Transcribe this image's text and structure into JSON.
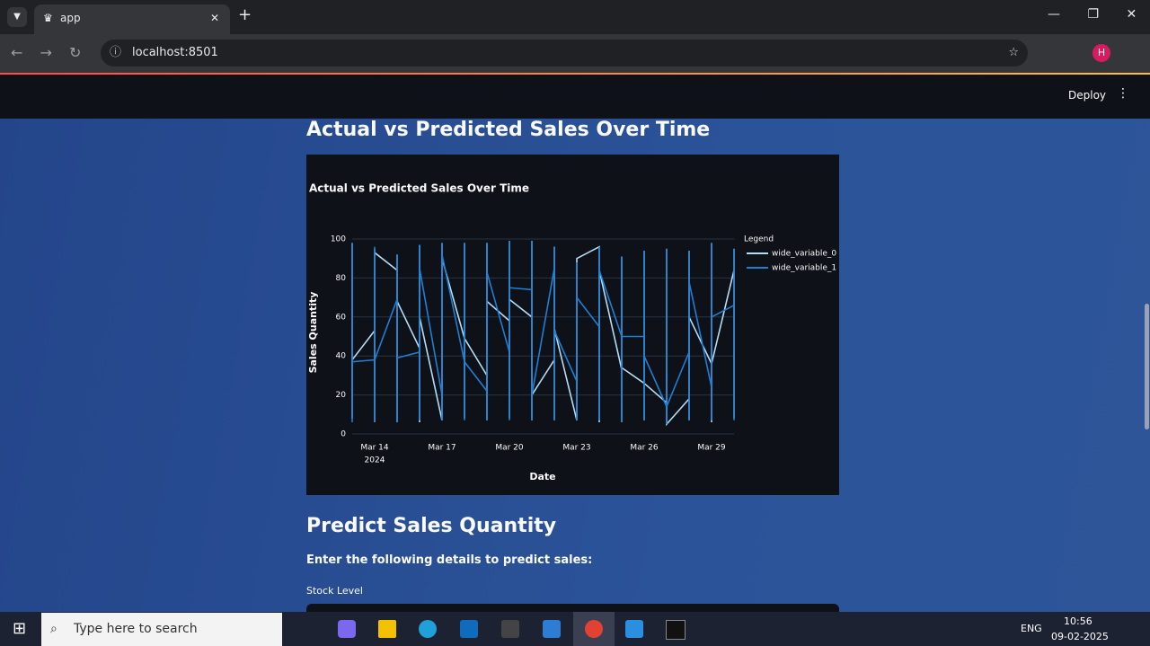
{
  "browser": {
    "tab_title": "app",
    "url": "localhost:8501"
  },
  "app": {
    "deploy": "Deploy",
    "heading": "Actual vs Predicted Sales Over Time",
    "heading2": "Predict Sales Quantity",
    "instruction": "Enter the following details to predict sales:",
    "field_label": "Stock Level"
  },
  "chart_data": {
    "type": "line",
    "title": "Actual vs Predicted Sales Over Time",
    "x_label": "Date",
    "y_label": "Sales Quantity",
    "legend_title": "Legend",
    "legend": "right",
    "grid": true,
    "x": [
      "2024-03-13",
      "2024-03-13",
      "2024-03-13",
      "2024-03-13",
      "2024-03-14",
      "2024-03-14",
      "2024-03-14",
      "2024-03-14",
      "2024-03-15",
      "2024-03-15",
      "2024-03-15",
      "2024-03-15",
      "2024-03-16",
      "2024-03-16",
      "2024-03-16",
      "2024-03-16",
      "2024-03-17",
      "2024-03-17",
      "2024-03-17",
      "2024-03-17",
      "2024-03-18",
      "2024-03-18",
      "2024-03-18",
      "2024-03-18",
      "2024-03-19",
      "2024-03-19",
      "2024-03-19",
      "2024-03-19",
      "2024-03-20",
      "2024-03-20",
      "2024-03-20",
      "2024-03-20",
      "2024-03-21",
      "2024-03-21",
      "2024-03-21",
      "2024-03-21",
      "2024-03-22",
      "2024-03-22",
      "2024-03-22",
      "2024-03-22",
      "2024-03-23",
      "2024-03-23",
      "2024-03-23",
      "2024-03-23",
      "2024-03-24",
      "2024-03-24",
      "2024-03-24",
      "2024-03-24",
      "2024-03-25",
      "2024-03-25",
      "2024-03-25",
      "2024-03-25",
      "2024-03-26",
      "2024-03-26",
      "2024-03-26",
      "2024-03-26",
      "2024-03-27",
      "2024-03-27",
      "2024-03-27",
      "2024-03-27",
      "2024-03-28",
      "2024-03-28",
      "2024-03-28",
      "2024-03-28",
      "2024-03-29",
      "2024-03-29",
      "2024-03-29",
      "2024-03-29",
      "2024-03-30",
      "2024-03-30",
      "2024-03-30",
      "2024-03-30"
    ],
    "series": [
      {
        "name": "wide_variable_0",
        "color": "#b4dcf7",
        "values": [
          38,
          98,
          8,
          38,
          53,
          95,
          6,
          93,
          84,
          92,
          6,
          68,
          44,
          97,
          6,
          60,
          7,
          98,
          7,
          90,
          49,
          98,
          8,
          49,
          30,
          98,
          7,
          68,
          58,
          99,
          8,
          69,
          60,
          99,
          7,
          20,
          38,
          96,
          7,
          54,
          7,
          88,
          7,
          90,
          96,
          96,
          6,
          84,
          33,
          91,
          6,
          34,
          26,
          94,
          7,
          26,
          16,
          95,
          5,
          5,
          18,
          94,
          7,
          60,
          36,
          98,
          6,
          36,
          84,
          95,
          8,
          84
        ]
      },
      {
        "name": "wide_variable_1",
        "color": "#1f7fd4",
        "values": [
          37,
          98,
          6,
          37,
          38,
          96,
          6,
          38,
          69,
          92,
          6,
          39,
          42,
          97,
          7,
          85,
          20,
          98,
          7,
          92,
          37,
          98,
          7,
          37,
          22,
          98,
          7,
          83,
          42,
          99,
          7,
          75,
          74,
          99,
          7,
          20,
          85,
          96,
          7,
          53,
          27,
          88,
          7,
          70,
          55,
          96,
          7,
          84,
          50,
          91,
          6,
          50,
          50,
          94,
          7,
          40,
          14,
          95,
          5,
          14,
          42,
          94,
          7,
          78,
          24,
          98,
          7,
          60,
          66,
          95,
          7,
          66
        ]
      }
    ],
    "xlim": [
      "2024-03-13",
      "2024-03-30"
    ],
    "xticks": [
      {
        "value": "2024-03-14",
        "label": "Mar 14",
        "sublabel": "2024"
      },
      {
        "value": "2024-03-17",
        "label": "Mar 17"
      },
      {
        "value": "2024-03-20",
        "label": "Mar 20"
      },
      {
        "value": "2024-03-23",
        "label": "Mar 23"
      },
      {
        "value": "2024-03-26",
        "label": "Mar 26"
      },
      {
        "value": "2024-03-29",
        "label": "Mar 29"
      }
    ],
    "ylim": [
      0,
      100
    ],
    "yticks": [
      0,
      20,
      40,
      60,
      80,
      100
    ]
  },
  "taskbar": {
    "search": "Type here to search",
    "language": "ENG",
    "time": "10:56",
    "date": "09-02-2025"
  }
}
